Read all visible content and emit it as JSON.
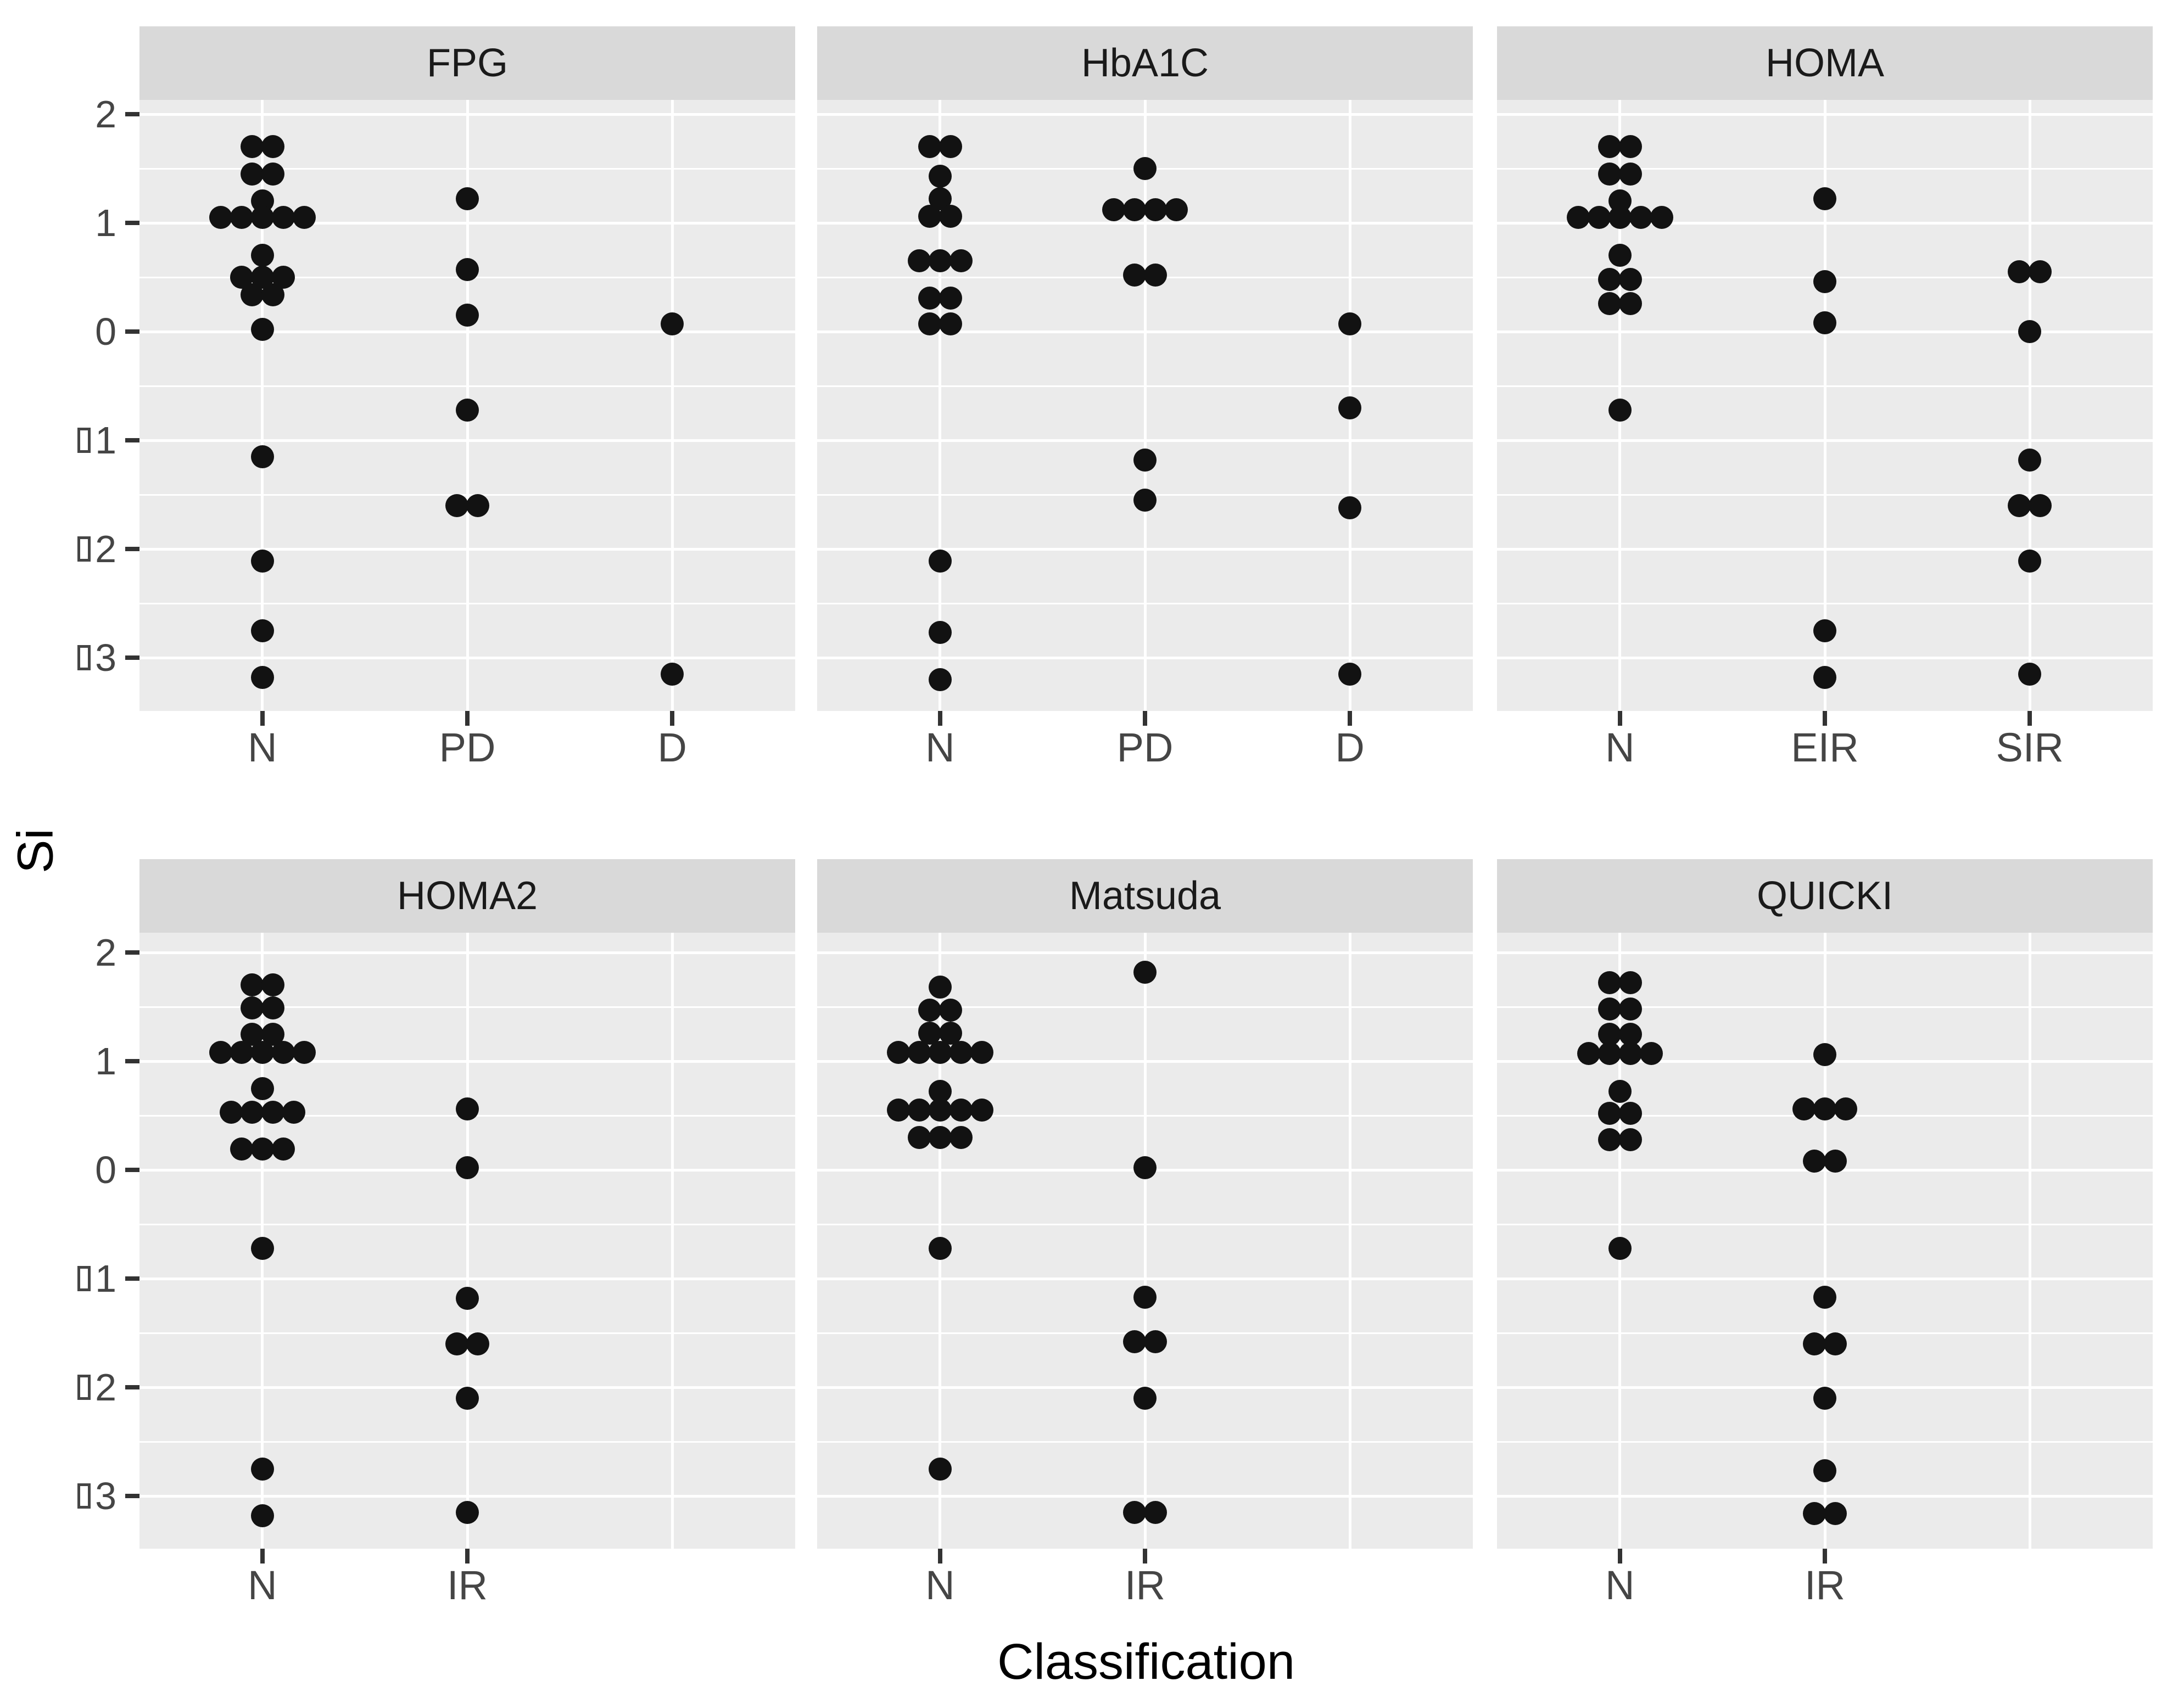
{
  "figure": {
    "kind": "faceted stacked dot plot (ggplot2 style)"
  },
  "y_axis": {
    "title": "Si",
    "ticks": [
      {
        "v": 2,
        "digits": "2",
        "box": false
      },
      {
        "v": 1,
        "digits": "1",
        "box": false
      },
      {
        "v": 0,
        "digits": "0",
        "box": false
      },
      {
        "v": -1,
        "digits": "1",
        "box": true
      },
      {
        "v": -2,
        "digits": "2",
        "box": true
      },
      {
        "v": -3,
        "digits": "3",
        "box": true
      }
    ]
  },
  "x_axis": {
    "title": "Classification"
  },
  "colors": {
    "panel_bg": "#EBEBEB",
    "strip_bg": "#D9D9D9",
    "gridline": "#FFFFFF",
    "dot": "#121212",
    "tick_mark": "#333333",
    "axis_text": "#454545",
    "strip_text": "#1A1A1A",
    "title_text": "#000000"
  },
  "chart_data": {
    "type": "scatter",
    "subtype": "stacked-dotplot",
    "xlabel": "Classification",
    "ylabel": "Si",
    "ylim": [
      -3.5,
      2.15
    ],
    "y_major_ticks": [
      2,
      1,
      0,
      -1,
      -2,
      -3
    ],
    "y_minor_gridlines": [
      1.5,
      0.5,
      -0.5,
      -1.5,
      -2.5
    ],
    "grid": "on",
    "legend": "none",
    "note": "Negative y tick labels show a missing-glyph box in place of the minus sign. Each stack entry is [Si value, number of dots side by side].",
    "facets": [
      {
        "title": "FPG",
        "categories": [
          "N",
          "PD",
          "D"
        ],
        "stacks": {
          "N": [
            [
              1.7,
              2
            ],
            [
              1.45,
              2
            ],
            [
              1.2,
              1
            ],
            [
              1.05,
              5
            ],
            [
              0.7,
              1
            ],
            [
              0.5,
              3
            ],
            [
              0.34,
              2
            ],
            [
              0.02,
              1
            ],
            [
              -1.15,
              1
            ],
            [
              -2.11,
              1
            ],
            [
              -2.75,
              1
            ],
            [
              -3.18,
              1
            ]
          ],
          "PD": [
            [
              1.22,
              1
            ],
            [
              0.57,
              1
            ],
            [
              0.15,
              1
            ],
            [
              -0.72,
              1
            ],
            [
              -1.6,
              2
            ]
          ],
          "D": [
            [
              0.07,
              1
            ],
            [
              -3.15,
              1
            ]
          ]
        }
      },
      {
        "title": "HbA1C",
        "categories": [
          "N",
          "PD",
          "D"
        ],
        "stacks": {
          "N": [
            [
              1.7,
              2
            ],
            [
              1.43,
              1
            ],
            [
              1.22,
              1
            ],
            [
              1.06,
              2
            ],
            [
              0.65,
              3
            ],
            [
              0.31,
              2
            ],
            [
              0.07,
              2
            ],
            [
              -2.11,
              1
            ],
            [
              -2.77,
              1
            ],
            [
              -3.2,
              1
            ]
          ],
          "PD": [
            [
              1.5,
              1
            ],
            [
              1.12,
              4
            ],
            [
              0.52,
              2
            ],
            [
              -1.18,
              1
            ],
            [
              -1.55,
              1
            ]
          ],
          "D": [
            [
              0.07,
              1
            ],
            [
              -0.7,
              1
            ],
            [
              -1.62,
              1
            ],
            [
              -3.15,
              1
            ]
          ]
        }
      },
      {
        "title": "HOMA",
        "categories": [
          "N",
          "EIR",
          "SIR"
        ],
        "stacks": {
          "N": [
            [
              1.7,
              2
            ],
            [
              1.45,
              2
            ],
            [
              1.2,
              1
            ],
            [
              1.05,
              5
            ],
            [
              0.7,
              1
            ],
            [
              0.48,
              2
            ],
            [
              0.26,
              2
            ],
            [
              -0.72,
              1
            ]
          ],
          "EIR": [
            [
              1.22,
              1
            ],
            [
              0.46,
              1
            ],
            [
              0.08,
              1
            ],
            [
              -2.75,
              1
            ],
            [
              -3.18,
              1
            ]
          ],
          "SIR": [
            [
              0.55,
              2
            ],
            [
              0.0,
              1
            ],
            [
              -1.18,
              1
            ],
            [
              -1.6,
              2
            ],
            [
              -2.11,
              1
            ],
            [
              -3.15,
              1
            ]
          ]
        }
      },
      {
        "title": "HOMA2",
        "categories": [
          "N",
          "IR"
        ],
        "stacks": {
          "N": [
            [
              1.7,
              2
            ],
            [
              1.49,
              2
            ],
            [
              1.25,
              2
            ],
            [
              1.08,
              5
            ],
            [
              0.75,
              1
            ],
            [
              0.53,
              4
            ],
            [
              0.19,
              3
            ],
            [
              -0.72,
              1
            ],
            [
              -2.75,
              1
            ],
            [
              -3.18,
              1
            ]
          ],
          "IR": [
            [
              0.56,
              1
            ],
            [
              0.02,
              1
            ],
            [
              -1.18,
              1
            ],
            [
              -1.6,
              2
            ],
            [
              -2.1,
              1
            ],
            [
              -3.15,
              1
            ]
          ]
        }
      },
      {
        "title": "Matsuda",
        "categories": [
          "N",
          "IR"
        ],
        "stacks": {
          "N": [
            [
              1.68,
              1
            ],
            [
              1.47,
              2
            ],
            [
              1.26,
              2
            ],
            [
              1.08,
              5
            ],
            [
              0.72,
              1
            ],
            [
              0.55,
              5
            ],
            [
              0.3,
              3
            ],
            [
              -0.72,
              1
            ],
            [
              -2.75,
              1
            ]
          ],
          "IR": [
            [
              1.82,
              1
            ],
            [
              0.02,
              1
            ],
            [
              -1.17,
              1
            ],
            [
              -1.58,
              2
            ],
            [
              -2.1,
              1
            ],
            [
              -3.15,
              2
            ]
          ]
        }
      },
      {
        "title": "QUICKI",
        "categories": [
          "N",
          "IR"
        ],
        "stacks": {
          "N": [
            [
              1.72,
              2
            ],
            [
              1.48,
              2
            ],
            [
              1.25,
              2
            ],
            [
              1.07,
              4
            ],
            [
              0.72,
              1
            ],
            [
              0.52,
              2
            ],
            [
              0.28,
              2
            ],
            [
              -0.72,
              1
            ]
          ],
          "IR": [
            [
              1.06,
              1
            ],
            [
              0.56,
              3
            ],
            [
              0.08,
              2
            ],
            [
              -1.17,
              1
            ],
            [
              -1.6,
              2
            ],
            [
              -2.1,
              1
            ],
            [
              -2.77,
              1
            ],
            [
              -3.16,
              2
            ]
          ]
        }
      }
    ]
  }
}
